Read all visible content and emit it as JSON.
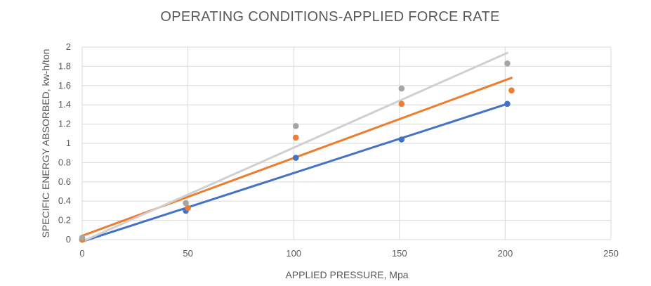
{
  "chart_data": {
    "type": "scatter",
    "title": "OPERATING CONDITIONS-APPLIED FORCE RATE",
    "xlabel": "APPLIED PRESSURE, Mpa",
    "ylabel": "SPECIFIC ENERGY ABSORBED, kw-h/ton",
    "xlim": [
      0,
      250
    ],
    "ylim": [
      0,
      2
    ],
    "x_ticks": [
      "0",
      "50",
      "100",
      "150",
      "200",
      "250"
    ],
    "y_ticks": [
      "0",
      "0.2",
      "0.4",
      "0.6",
      "0.8",
      "1",
      "1.2",
      "1.4",
      "1.6",
      "1.8",
      "2"
    ],
    "grid": "both",
    "legend": "none",
    "series": [
      {
        "color": "#4472C4",
        "points": [
          [
            0,
            0
          ],
          [
            49,
            0.3
          ],
          [
            101,
            0.85
          ],
          [
            151,
            1.04
          ],
          [
            201,
            1.41
          ]
        ],
        "trendline": [
          [
            0,
            -0.02
          ],
          [
            201,
            1.41
          ]
        ]
      },
      {
        "color": "#ED7D31",
        "points": [
          [
            0,
            0
          ],
          [
            50,
            0.33
          ],
          [
            101,
            1.06
          ],
          [
            151,
            1.41
          ],
          [
            203,
            1.55
          ]
        ],
        "trendline": [
          [
            0,
            0.04
          ],
          [
            203,
            1.68
          ]
        ]
      },
      {
        "color": "#A5A5A5",
        "trendline_color": "#D0D0D0",
        "points": [
          [
            0,
            0.02
          ],
          [
            49,
            0.38
          ],
          [
            101,
            1.18
          ],
          [
            151,
            1.57
          ],
          [
            201,
            1.83
          ]
        ],
        "trendline": [
          [
            0,
            -0.02
          ],
          [
            201,
            1.94
          ]
        ]
      }
    ]
  }
}
